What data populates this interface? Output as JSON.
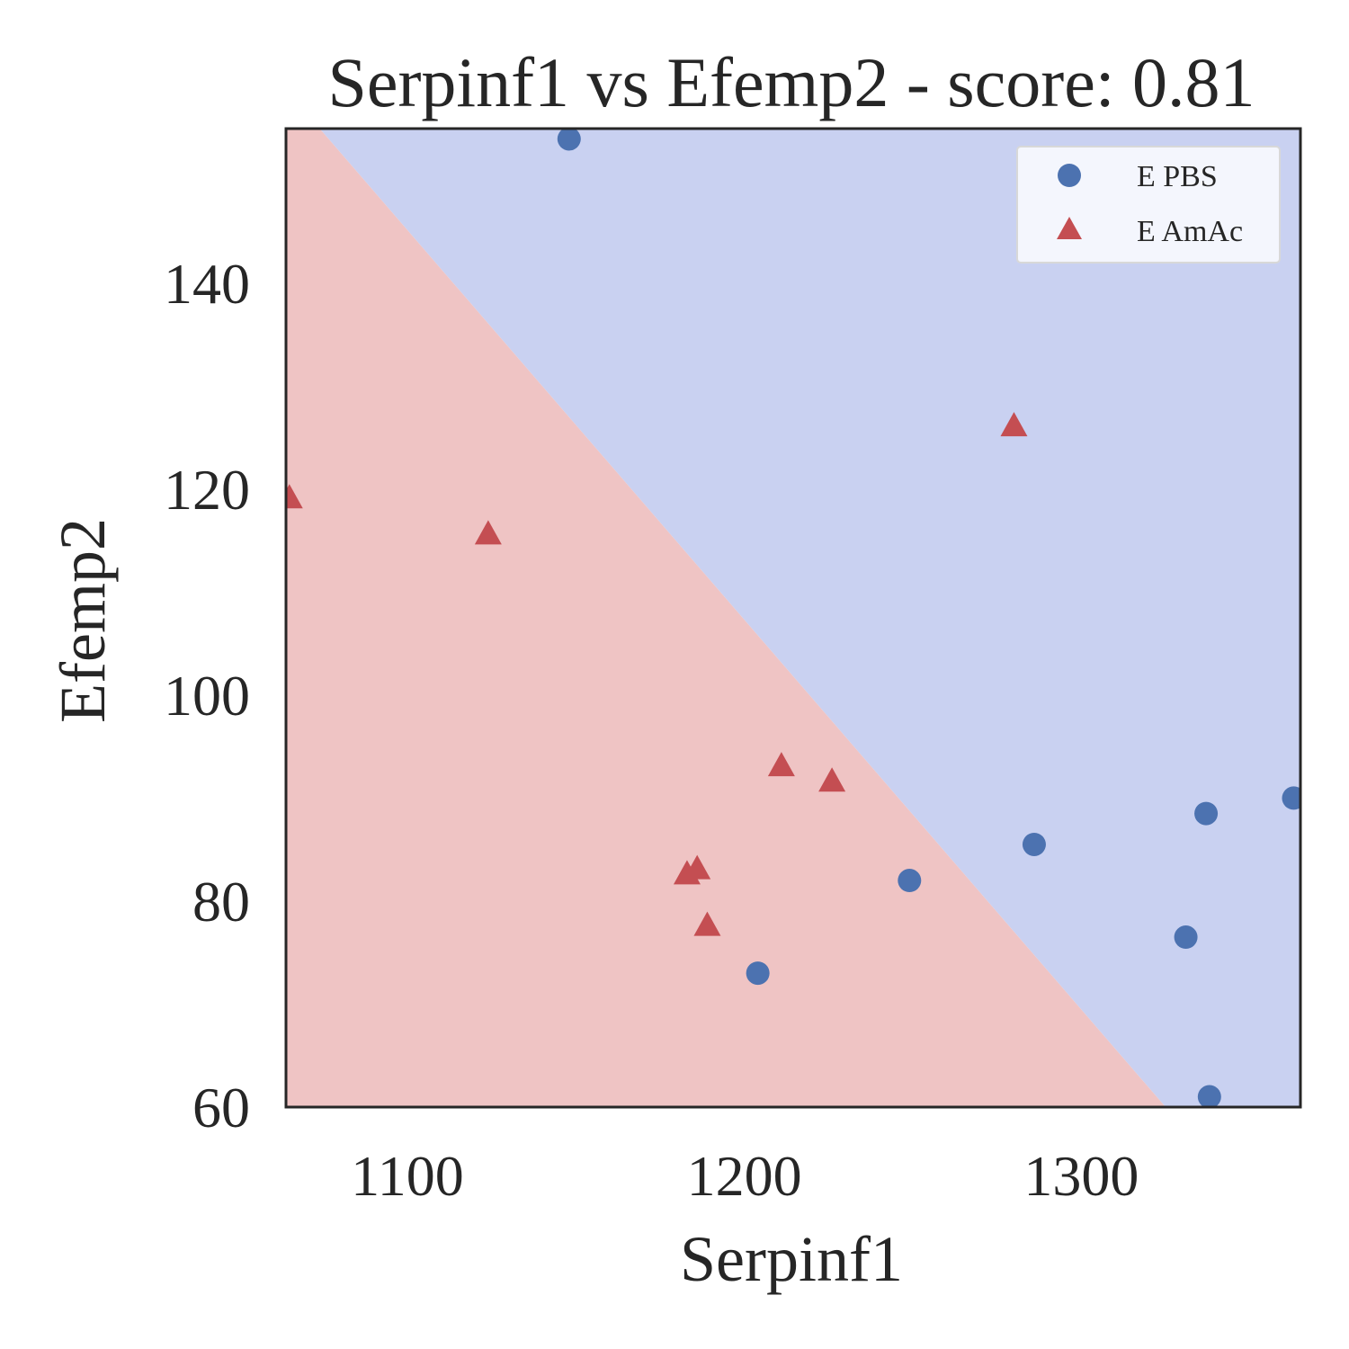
{
  "chart_data": {
    "type": "scatter",
    "title": "Serpinf1 vs Efemp2 - score: 0.81",
    "xlabel": "Serpinf1",
    "ylabel": "Efemp2",
    "xlim": [
      1064,
      1365
    ],
    "ylim": [
      60,
      155
    ],
    "xticks": [
      1100,
      1200,
      1300
    ],
    "yticks": [
      60,
      80,
      100,
      120,
      140
    ],
    "grid": false,
    "legend_position": "top-right",
    "decision_regions": {
      "boundary": [
        [
          1074,
          155
        ],
        [
          1325,
          60
        ]
      ],
      "lower_left_region_series": "E AmAc",
      "upper_right_region_series": "E PBS",
      "lower_left_color": "#efc4c4",
      "upper_right_color": "#c9d1f1"
    },
    "series": [
      {
        "name": "E PBS",
        "marker": "circle",
        "color": "#4c72b0",
        "points": [
          [
            1148,
            154
          ],
          [
            1204,
            73
          ],
          [
            1249,
            82
          ],
          [
            1286,
            85.5
          ],
          [
            1331,
            76.5
          ],
          [
            1337,
            88.5
          ],
          [
            1338,
            61
          ],
          [
            1363,
            90
          ]
        ]
      },
      {
        "name": "E AmAc",
        "marker": "triangle",
        "color": "#c44e52",
        "points": [
          [
            1065,
            119
          ],
          [
            1124,
            115.5
          ],
          [
            1183,
            82.5
          ],
          [
            1186,
            83
          ],
          [
            1189,
            77.5
          ],
          [
            1211,
            93
          ],
          [
            1226,
            91.5
          ],
          [
            1280,
            126
          ]
        ]
      }
    ]
  }
}
